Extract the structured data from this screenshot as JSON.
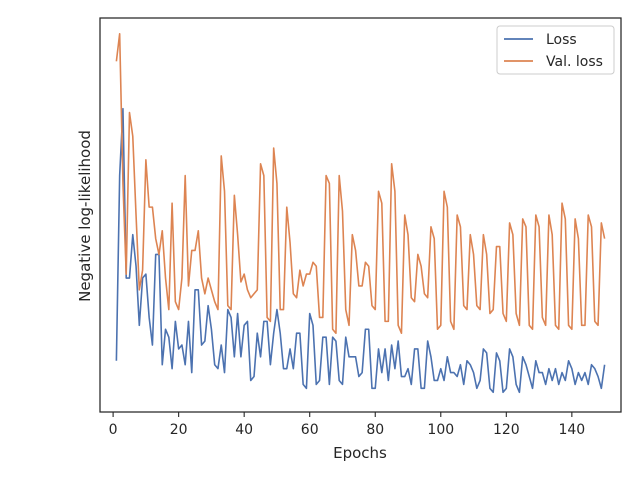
{
  "chart_data": {
    "type": "line",
    "title": "",
    "xlabel": "Epochs",
    "ylabel": "Negative log-likelihood",
    "xlim": [
      -4,
      155
    ],
    "ylim": [
      0,
      100
    ],
    "xticks": [
      0,
      20,
      40,
      60,
      80,
      100,
      120,
      140
    ],
    "yticks": [],
    "grid": false,
    "legend_position": "top-right",
    "series": [
      {
        "name": "Loss",
        "color": "#4c72b0",
        "x": [
          1,
          2,
          3,
          4,
          5,
          6,
          7,
          8,
          9,
          10,
          11,
          12,
          13,
          14,
          15,
          16,
          17,
          18,
          19,
          20,
          21,
          22,
          23,
          24,
          25,
          26,
          27,
          28,
          29,
          30,
          31,
          32,
          33,
          34,
          35,
          36,
          37,
          38,
          39,
          40,
          41,
          42,
          43,
          44,
          45,
          46,
          47,
          48,
          49,
          50,
          51,
          52,
          53,
          54,
          55,
          56,
          57,
          58,
          59,
          60,
          61,
          62,
          63,
          64,
          65,
          66,
          67,
          68,
          69,
          70,
          71,
          72,
          73,
          74,
          75,
          76,
          77,
          78,
          79,
          80,
          81,
          82,
          83,
          84,
          85,
          86,
          87,
          88,
          89,
          90,
          91,
          92,
          93,
          94,
          95,
          96,
          97,
          98,
          99,
          100,
          101,
          102,
          103,
          104,
          105,
          106,
          107,
          108,
          109,
          110,
          111,
          112,
          113,
          114,
          115,
          116,
          117,
          118,
          119,
          120,
          121,
          122,
          123,
          124,
          125,
          126,
          127,
          128,
          129,
          130,
          131,
          132,
          133,
          134,
          135,
          136,
          137,
          138,
          139,
          140,
          141,
          142,
          143,
          144,
          145,
          146,
          147,
          148,
          149,
          150
        ],
        "y": [
          13,
          60,
          77,
          34,
          34,
          45,
          37,
          22,
          34,
          35,
          24,
          17,
          40,
          40,
          12,
          21,
          19,
          11,
          23,
          16,
          17,
          12,
          23,
          10,
          31,
          31,
          17,
          18,
          27,
          21,
          12,
          11,
          17,
          10,
          26,
          24,
          14,
          25,
          14,
          22,
          23,
          8,
          9,
          20,
          14,
          23,
          23,
          12,
          20,
          26,
          20,
          11,
          11,
          16,
          11,
          20,
          20,
          7,
          6,
          25,
          22,
          7,
          8,
          19,
          19,
          7,
          19,
          18,
          8,
          7,
          19,
          14,
          14,
          14,
          9,
          10,
          21,
          21,
          6,
          6,
          16,
          10,
          16,
          8,
          17,
          11,
          18,
          9,
          9,
          11,
          7,
          16,
          16,
          6,
          6,
          18,
          14,
          8,
          8,
          11,
          8,
          14,
          10,
          10,
          9,
          12,
          7,
          13,
          12,
          10,
          6,
          8,
          16,
          15,
          6,
          5,
          15,
          13,
          5,
          6,
          16,
          14,
          7,
          5,
          14,
          12,
          9,
          6,
          13,
          10,
          10,
          7,
          11,
          8,
          11,
          7,
          10,
          8,
          13,
          11,
          7,
          10,
          8,
          10,
          7,
          12,
          11,
          9,
          6,
          12
        ]
      },
      {
        "name": "Val. loss",
        "color": "#dd8452",
        "x": [
          1,
          2,
          3,
          4,
          5,
          6,
          7,
          8,
          9,
          10,
          11,
          12,
          13,
          14,
          15,
          16,
          17,
          18,
          19,
          20,
          21,
          22,
          23,
          24,
          25,
          26,
          27,
          28,
          29,
          30,
          31,
          32,
          33,
          34,
          35,
          36,
          37,
          38,
          39,
          40,
          41,
          42,
          43,
          44,
          45,
          46,
          47,
          48,
          49,
          50,
          51,
          52,
          53,
          54,
          55,
          56,
          57,
          58,
          59,
          60,
          61,
          62,
          63,
          64,
          65,
          66,
          67,
          68,
          69,
          70,
          71,
          72,
          73,
          74,
          75,
          76,
          77,
          78,
          79,
          80,
          81,
          82,
          83,
          84,
          85,
          86,
          87,
          88,
          89,
          90,
          91,
          92,
          93,
          94,
          95,
          96,
          97,
          98,
          99,
          100,
          101,
          102,
          103,
          104,
          105,
          106,
          107,
          108,
          109,
          110,
          111,
          112,
          113,
          114,
          115,
          116,
          117,
          118,
          119,
          120,
          121,
          122,
          123,
          124,
          125,
          126,
          127,
          128,
          129,
          130,
          131,
          132,
          133,
          134,
          135,
          136,
          137,
          138,
          139,
          140,
          141,
          142,
          143,
          144,
          145,
          146,
          147,
          148,
          149,
          150
        ],
        "y": [
          89,
          96,
          58,
          35,
          76,
          70,
          50,
          31,
          36,
          64,
          52,
          52,
          44,
          40,
          46,
          34,
          26,
          53,
          28,
          26,
          34,
          60,
          32,
          41,
          41,
          46,
          34,
          30,
          34,
          31,
          28,
          26,
          65,
          56,
          27,
          26,
          55,
          45,
          33,
          35,
          31,
          29,
          30,
          31,
          63,
          60,
          24,
          23,
          67,
          58,
          26,
          26,
          52,
          43,
          30,
          29,
          36,
          32,
          35,
          35,
          38,
          37,
          24,
          24,
          60,
          58,
          21,
          20,
          60,
          51,
          26,
          22,
          45,
          41,
          32,
          32,
          38,
          37,
          27,
          26,
          56,
          53,
          23,
          23,
          63,
          56,
          22,
          20,
          50,
          45,
          29,
          28,
          40,
          37,
          30,
          29,
          47,
          44,
          21,
          22,
          56,
          52,
          23,
          21,
          50,
          47,
          27,
          26,
          45,
          40,
          27,
          26,
          45,
          40,
          25,
          26,
          42,
          42,
          25,
          23,
          48,
          45,
          25,
          22,
          49,
          47,
          22,
          21,
          50,
          47,
          24,
          22,
          50,
          45,
          22,
          21,
          53,
          49,
          22,
          21,
          49,
          44,
          22,
          22,
          50,
          47,
          23,
          22,
          48,
          44
        ]
      }
    ]
  }
}
